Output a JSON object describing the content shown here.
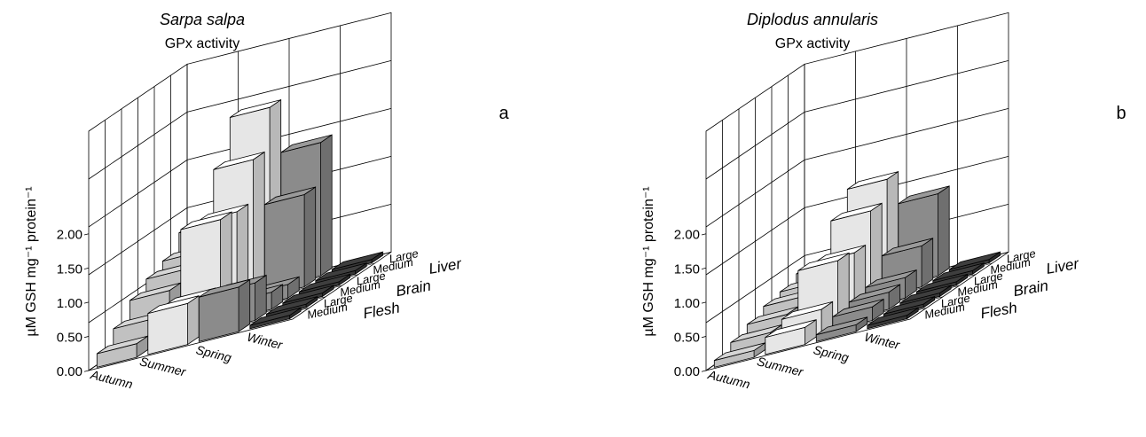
{
  "chart_data": [
    {
      "type": "bar3d",
      "species": "Sarpa salpa",
      "subtitle": "GPx activity",
      "panel_label": "a",
      "ylabel": "µM GSH mg⁻¹ protein⁻¹",
      "yticks": [
        "0.00",
        "0.50",
        "1.00",
        "1.50",
        "2.00"
      ],
      "ylim": [
        0,
        3.5
      ],
      "seasons": [
        "Autumn",
        "Summer",
        "Spring",
        "Winter"
      ],
      "depth_rows": [
        "Medium",
        "Large",
        "Medium",
        "Large",
        "Medium",
        "Large"
      ],
      "tissues": [
        "Flesh",
        "Brain",
        "Liver"
      ],
      "season_colors": [
        "#d6d6d6",
        "#ffffff",
        "#9a9a9a",
        "#3e3e3e"
      ],
      "values": [
        [
          0.2,
          0.4,
          0.65,
          0.8,
          0.9,
          1.15
        ],
        [
          0.6,
          0.55,
          1.5,
          1.45,
          2.05,
          2.65
        ],
        [
          0.65,
          0.55,
          0.25,
          0.2,
          1.35,
          1.95
        ],
        [
          0.05,
          0.05,
          0.05,
          0.05,
          0.05,
          0.05
        ]
      ]
    },
    {
      "type": "bar3d",
      "species": "Diplodus annularis",
      "subtitle": "GPx activity",
      "panel_label": "b",
      "ylabel": "µM GSH mg⁻¹ protein⁻¹",
      "yticks": [
        "0.00",
        "0.50",
        "1.00",
        "1.50",
        "2.00"
      ],
      "ylim": [
        0,
        3.5
      ],
      "seasons": [
        "Autumn",
        "Summer",
        "Spring",
        "Winter"
      ],
      "depth_rows": [
        "Medium",
        "Large",
        "Medium",
        "Large",
        "Medium",
        "Large"
      ],
      "tissues": [
        "Flesh",
        "Brain",
        "Liver"
      ],
      "season_colors": [
        "#d6d6d6",
        "#ffffff",
        "#9a9a9a",
        "#3e3e3e"
      ],
      "values": [
        [
          0.1,
          0.2,
          0.3,
          0.4,
          0.45,
          0.55
        ],
        [
          0.25,
          0.35,
          0.9,
          0.85,
          1.3,
          1.6
        ],
        [
          0.1,
          0.2,
          0.25,
          0.3,
          0.6,
          1.2
        ],
        [
          0.05,
          0.05,
          0.05,
          0.05,
          0.05,
          0.05
        ]
      ]
    }
  ]
}
